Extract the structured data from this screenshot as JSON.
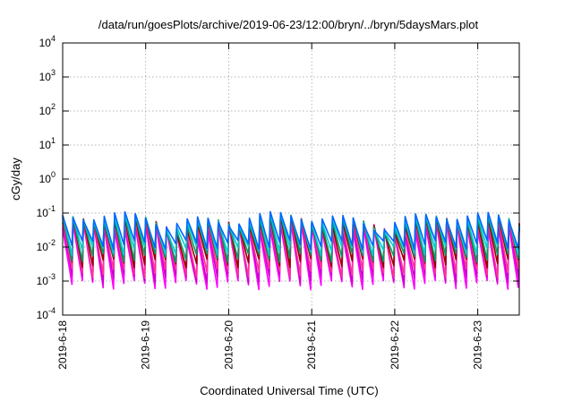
{
  "chart_data": {
    "type": "line",
    "title": "/data/run/goesPlots/archive/2019-06-23/12:00/bryn/../bryn/5daysMars.plot",
    "xlabel": "Coordinated Universal Time (UTC)",
    "ylabel": "cGy/day",
    "y_scale": "log",
    "ylim": [
      0.0001,
      10000
    ],
    "xlim": [
      "2019-06-18T00:00",
      "2019-06-23T12:00"
    ],
    "grid": true,
    "legend": "none",
    "y_ticks": [
      {
        "base": "10",
        "exp": "-4"
      },
      {
        "base": "10",
        "exp": "-3"
      },
      {
        "base": "10",
        "exp": "-2"
      },
      {
        "base": "10",
        "exp": "-1"
      },
      {
        "base": "10",
        "exp": "0"
      },
      {
        "base": "10",
        "exp": "1"
      },
      {
        "base": "10",
        "exp": "2"
      },
      {
        "base": "10",
        "exp": "3"
      },
      {
        "base": "10",
        "exp": "4"
      }
    ],
    "x_ticks": [
      "2019-6-18",
      "2019-6-19",
      "2019-6-20",
      "2019-6-21",
      "2019-6-22",
      "2019-6-23"
    ],
    "cycle_period_hours": 3,
    "series": [
      {
        "color": "#ff00ff",
        "low": 0.0008,
        "high": 0.035
      },
      {
        "color": "#cc00cc",
        "low": 0.0012,
        "high": 0.045
      },
      {
        "color": "#ff3399",
        "low": 0.0018,
        "high": 0.05
      },
      {
        "color": "#990000",
        "low": 0.0035,
        "high": 0.055
      },
      {
        "color": "#009966",
        "low": 0.005,
        "high": 0.06
      },
      {
        "color": "#00cccc",
        "low": 0.008,
        "high": 0.065
      },
      {
        "color": "#0066ff",
        "low": 0.012,
        "high": 0.07
      }
    ]
  }
}
